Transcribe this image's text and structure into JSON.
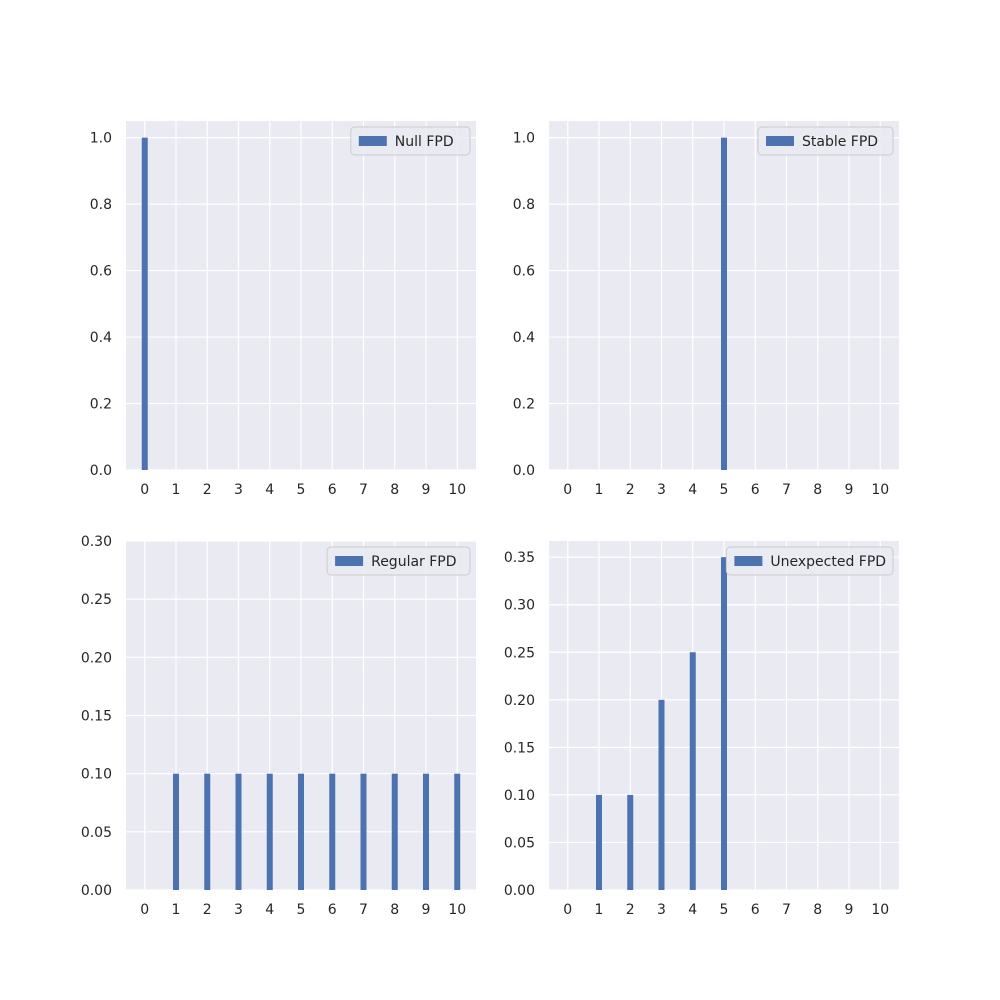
{
  "chart_data": [
    {
      "type": "bar",
      "x": [
        0,
        1,
        2,
        3,
        4,
        5,
        6,
        7,
        8,
        9,
        10
      ],
      "series": [
        {
          "name": "Null FPD",
          "values": [
            1.0,
            0,
            0,
            0,
            0,
            0,
            0,
            0,
            0,
            0,
            0
          ]
        }
      ],
      "ylim": [
        0,
        1.05
      ],
      "yticks": [
        "0.0",
        "0.2",
        "0.4",
        "0.6",
        "0.8",
        "1.0"
      ],
      "xticks": [
        "0",
        "1",
        "2",
        "3",
        "4",
        "5",
        "6",
        "7",
        "8",
        "9",
        "10"
      ],
      "grid": true,
      "legend": "top-right"
    },
    {
      "type": "bar",
      "x": [
        0,
        1,
        2,
        3,
        4,
        5,
        6,
        7,
        8,
        9,
        10
      ],
      "series": [
        {
          "name": "Stable FPD",
          "values": [
            0,
            0,
            0,
            0,
            0,
            1.0,
            0,
            0,
            0,
            0,
            0
          ]
        }
      ],
      "ylim": [
        0,
        1.05
      ],
      "yticks": [
        "0.0",
        "0.2",
        "0.4",
        "0.6",
        "0.8",
        "1.0"
      ],
      "xticks": [
        "0",
        "1",
        "2",
        "3",
        "4",
        "5",
        "6",
        "7",
        "8",
        "9",
        "10"
      ],
      "grid": true,
      "legend": "top-right"
    },
    {
      "type": "bar",
      "x": [
        0,
        1,
        2,
        3,
        4,
        5,
        6,
        7,
        8,
        9,
        10
      ],
      "series": [
        {
          "name": "Regular FPD",
          "values": [
            0,
            0.1,
            0.1,
            0.1,
            0.1,
            0.1,
            0.1,
            0.1,
            0.1,
            0.1,
            0.1
          ]
        }
      ],
      "ylim": [
        0,
        0.3
      ],
      "yticks": [
        "0.00",
        "0.05",
        "0.10",
        "0.15",
        "0.20",
        "0.25",
        "0.30"
      ],
      "xticks": [
        "0",
        "1",
        "2",
        "3",
        "4",
        "5",
        "6",
        "7",
        "8",
        "9",
        "10"
      ],
      "grid": true,
      "legend": "top-right"
    },
    {
      "type": "bar",
      "x": [
        0,
        1,
        2,
        3,
        4,
        5,
        6,
        7,
        8,
        9,
        10
      ],
      "series": [
        {
          "name": "Unexpected FPD",
          "values": [
            0,
            0.1,
            0.1,
            0.2,
            0.25,
            0.35,
            0,
            0,
            0,
            0,
            0
          ]
        }
      ],
      "ylim": [
        0,
        0.367
      ],
      "yticks": [
        "0.00",
        "0.05",
        "0.10",
        "0.15",
        "0.20",
        "0.25",
        "0.30",
        "0.35"
      ],
      "xticks": [
        "0",
        "1",
        "2",
        "3",
        "4",
        "5",
        "6",
        "7",
        "8",
        "9",
        "10"
      ],
      "grid": true,
      "legend": "top-right"
    }
  ],
  "colors": {
    "bar": "#4c72b0",
    "axes_bg": "#eaeaf2",
    "grid": "#ffffff",
    "text": "#262626"
  }
}
